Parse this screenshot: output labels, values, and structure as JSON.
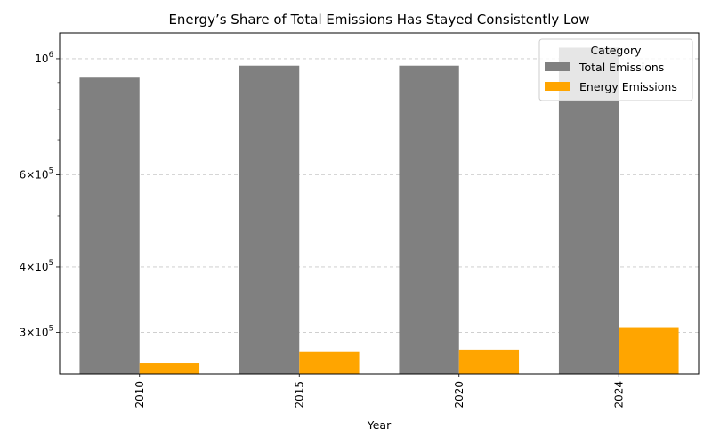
{
  "chart_data": {
    "type": "bar",
    "title": "Energy’s Share of Total Emissions Has Stayed Consistently Low",
    "xlabel": "Year",
    "ylabel": "",
    "categories": [
      "2010",
      "2015",
      "2020",
      "2024"
    ],
    "series": [
      {
        "name": "Total Emissions",
        "color": "#808080",
        "values": [
          920000,
          970000,
          970000,
          1050000
        ]
      },
      {
        "name": "Energy Emissions",
        "color": "#FFA500",
        "values": [
          262000,
          276000,
          278000,
          307000
        ]
      }
    ],
    "y_scale": "log",
    "ylim": [
      250000,
      1120000
    ],
    "y_ticks": [
      {
        "value": 300000,
        "mantissa": "3",
        "exponent": "5"
      },
      {
        "value": 400000,
        "mantissa": "4",
        "exponent": "5"
      },
      {
        "value": 600000,
        "mantissa": "6",
        "exponent": "5"
      },
      {
        "value": 1000000,
        "mantissa": "",
        "exponent": "6"
      }
    ],
    "y_minor_ticks": [
      500000,
      700000,
      800000,
      900000
    ],
    "grid": "y-major-dashed",
    "legend": {
      "title": "Category",
      "position": "top-right"
    }
  }
}
